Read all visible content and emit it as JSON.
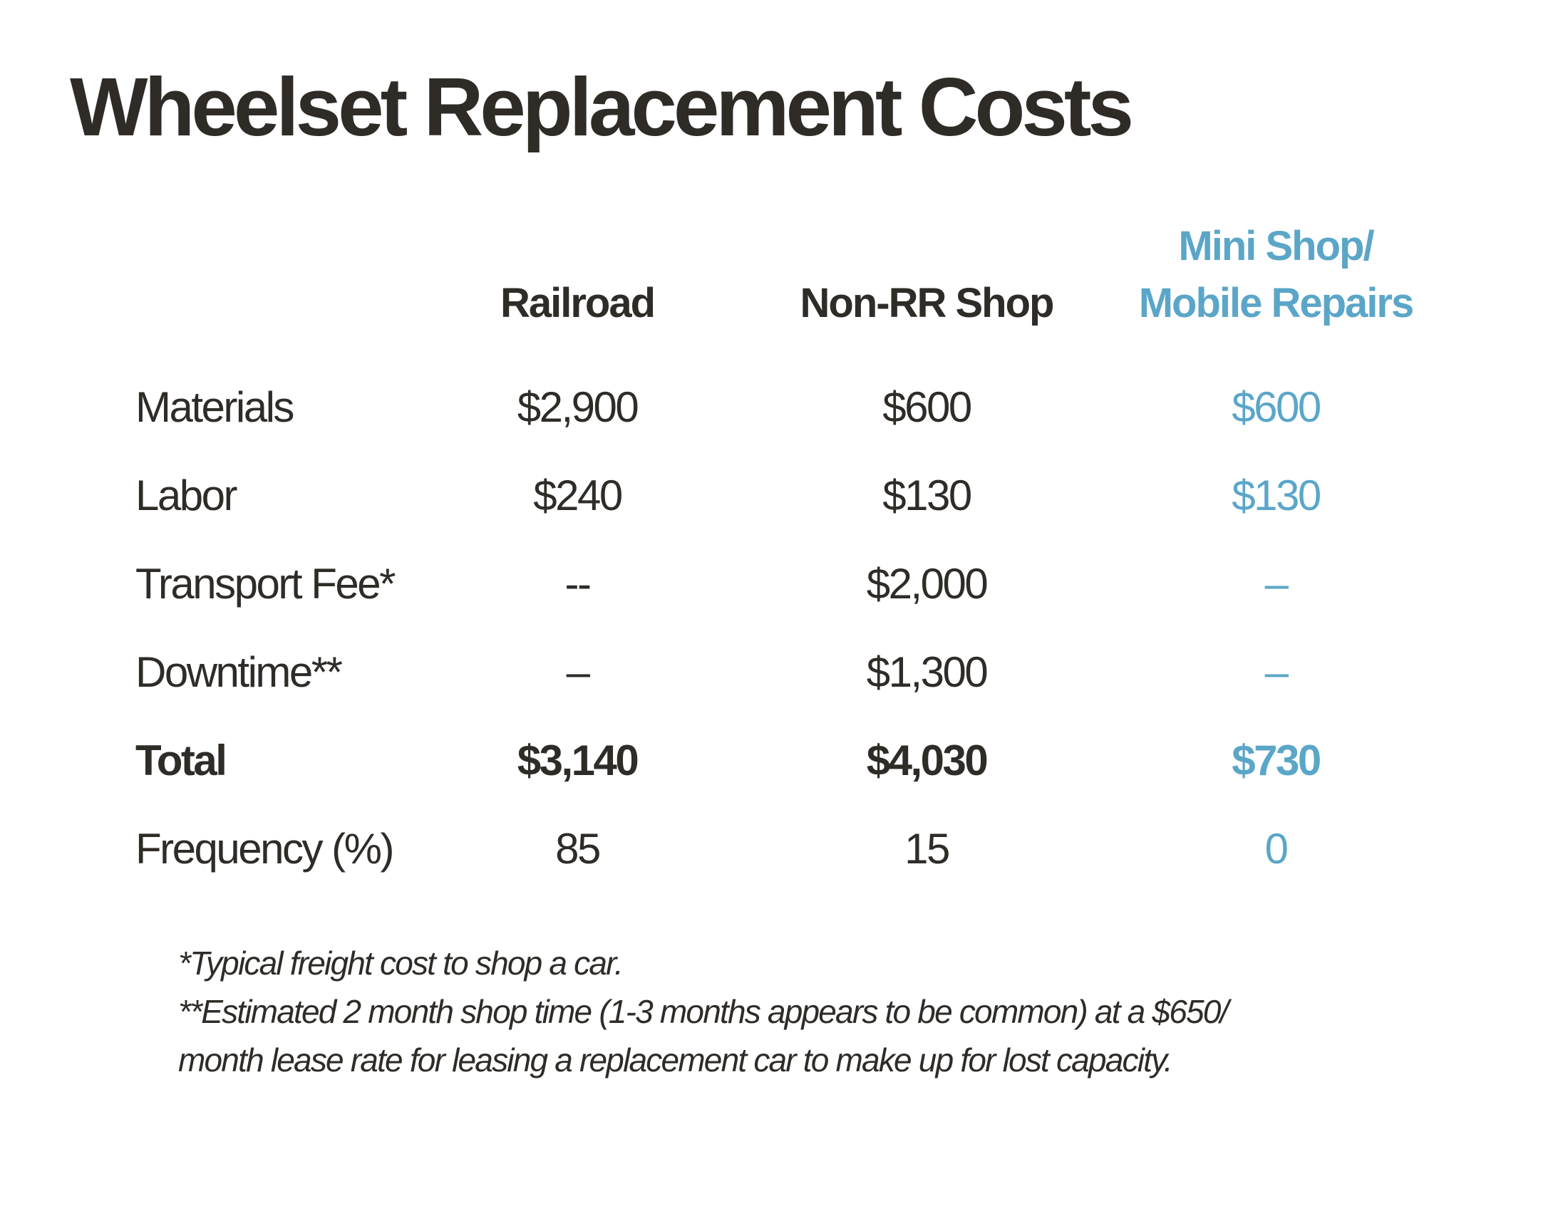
{
  "title": "Wheelset Replacement Costs",
  "colors": {
    "text": "#2f2c28",
    "accent": "#5ba6c8",
    "background": "#ffffff"
  },
  "columns": {
    "railroad": "Railroad",
    "non_rr_shop": "Non-RR Shop",
    "mini_shop_line1": "Mini Shop/",
    "mini_shop_line2": "Mobile Repairs"
  },
  "rows": [
    {
      "label": "Materials",
      "railroad": "$2,900",
      "non_rr_shop": "$600",
      "mini_shop": "$600"
    },
    {
      "label": "Labor",
      "railroad": "$240",
      "non_rr_shop": "$130",
      "mini_shop": "$130"
    },
    {
      "label": "Transport Fee*",
      "railroad": "--",
      "non_rr_shop": "$2,000",
      "mini_shop": "–"
    },
    {
      "label": "Downtime**",
      "railroad": "–",
      "non_rr_shop": "$1,300",
      "mini_shop": "–"
    },
    {
      "label": "Total",
      "railroad": "$3,140",
      "non_rr_shop": "$4,030",
      "mini_shop": "$730"
    },
    {
      "label": "Frequency (%)",
      "railroad": "85",
      "non_rr_shop": "15",
      "mini_shop": "0"
    }
  ],
  "footnotes": [
    "*Typical freight cost to shop a car.",
    "**Estimated 2 month shop time (1-3 months appears to be common) at a $650/",
    "month lease rate for leasing a replacement car to make up for lost capacity."
  ]
}
